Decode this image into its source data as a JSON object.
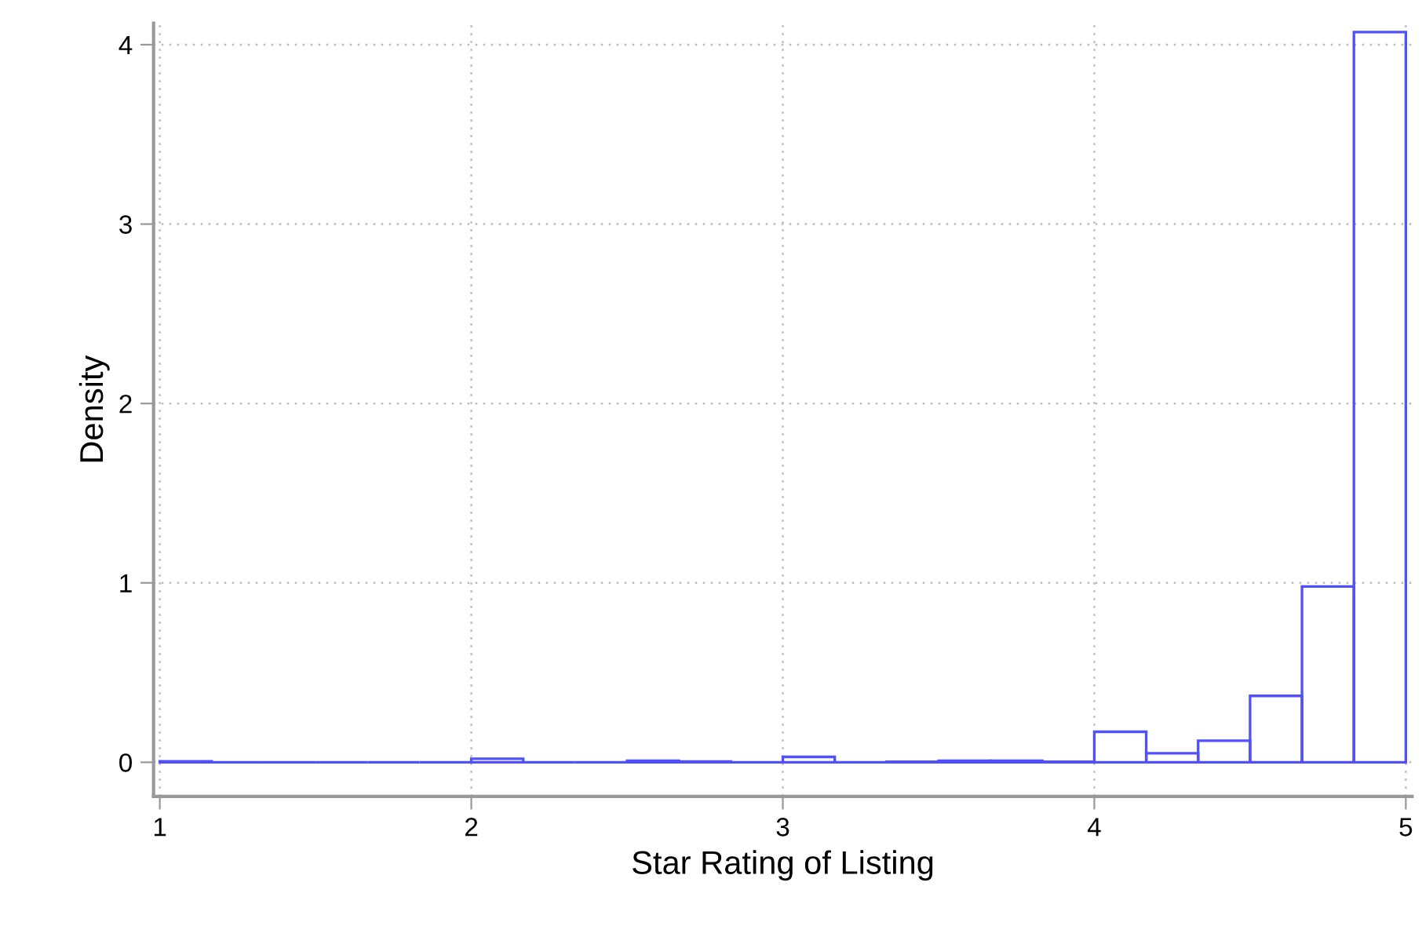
{
  "chart_data": {
    "type": "histogram",
    "xlabel": "Star Rating of Listing",
    "ylabel": "Density",
    "bins": [
      1,
      1.1667,
      1.3333,
      1.5,
      1.6667,
      1.8333,
      2,
      2.1667,
      2.3333,
      2.5,
      2.6667,
      2.8333,
      3,
      3.1667,
      3.3333,
      3.5,
      3.6667,
      3.8333,
      4,
      4.1667,
      4.3333,
      4.5,
      4.6667,
      4.8333,
      5
    ],
    "values": [
      0.005,
      0,
      0,
      0,
      0,
      0,
      0.02,
      0,
      0,
      0.008,
      0.004,
      0,
      0.03,
      0,
      0.003,
      0.008,
      0.008,
      0.003,
      0.17,
      0.05,
      0.12,
      0.37,
      0.98,
      4.07
    ],
    "color": "#5050ff",
    "xlim": [
      0.98,
      5.02
    ],
    "ylim": [
      -0.19,
      4.12
    ],
    "xticks": [
      1,
      2,
      3,
      4,
      5
    ],
    "yticks": [
      0,
      1,
      2,
      3,
      4
    ],
    "grid": true
  }
}
